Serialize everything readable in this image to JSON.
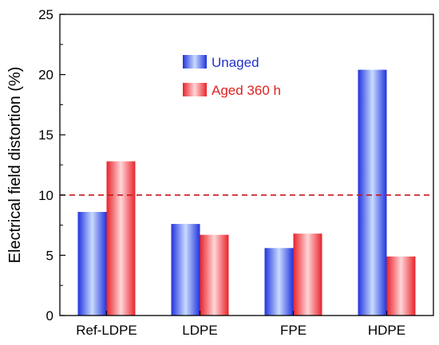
{
  "chart_data": {
    "type": "bar",
    "title": "",
    "xlabel": "",
    "ylabel": "Electrical field distortion (%)",
    "ylim": [
      0,
      25
    ],
    "yticks": [
      "0",
      "5",
      "10",
      "15",
      "20",
      "25"
    ],
    "categories": [
      "Ref-LDPE",
      "LDPE",
      "FPE",
      "HDPE"
    ],
    "series": [
      {
        "name": "Unaged",
        "values": [
          8.6,
          7.6,
          5.6,
          20.4
        ],
        "color": "#2f4fe6",
        "label_color": "#2233cc"
      },
      {
        "name": "Aged 360 h",
        "values": [
          12.8,
          6.7,
          6.8,
          4.9
        ],
        "color": "#e8353a",
        "label_color": "#dd2222"
      }
    ],
    "reference_line": {
      "y": 10,
      "color": "#c8161d",
      "style": "dashed"
    },
    "legend_position": "top-center",
    "grid": false
  }
}
